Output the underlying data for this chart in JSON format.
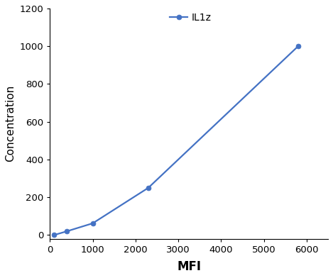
{
  "x": [
    100,
    400,
    1000,
    2300,
    5800
  ],
  "y": [
    0,
    20,
    62,
    250,
    1000
  ],
  "line_color": "#4472C4",
  "marker_color": "#4472C4",
  "marker_style": "o",
  "marker_size": 5,
  "line_width": 1.6,
  "xlabel": "MFI",
  "ylabel": "Concentration",
  "xlim": [
    0,
    6500
  ],
  "ylim": [
    -20,
    1200
  ],
  "xticks": [
    0,
    1000,
    2000,
    3000,
    4000,
    5000,
    6000
  ],
  "yticks": [
    0,
    200,
    400,
    600,
    800,
    1000,
    1200
  ],
  "legend_label": "IL1z",
  "xlabel_fontsize": 12,
  "ylabel_fontsize": 11,
  "tick_fontsize": 9.5,
  "legend_fontsize": 10,
  "background_color": "#ffffff"
}
